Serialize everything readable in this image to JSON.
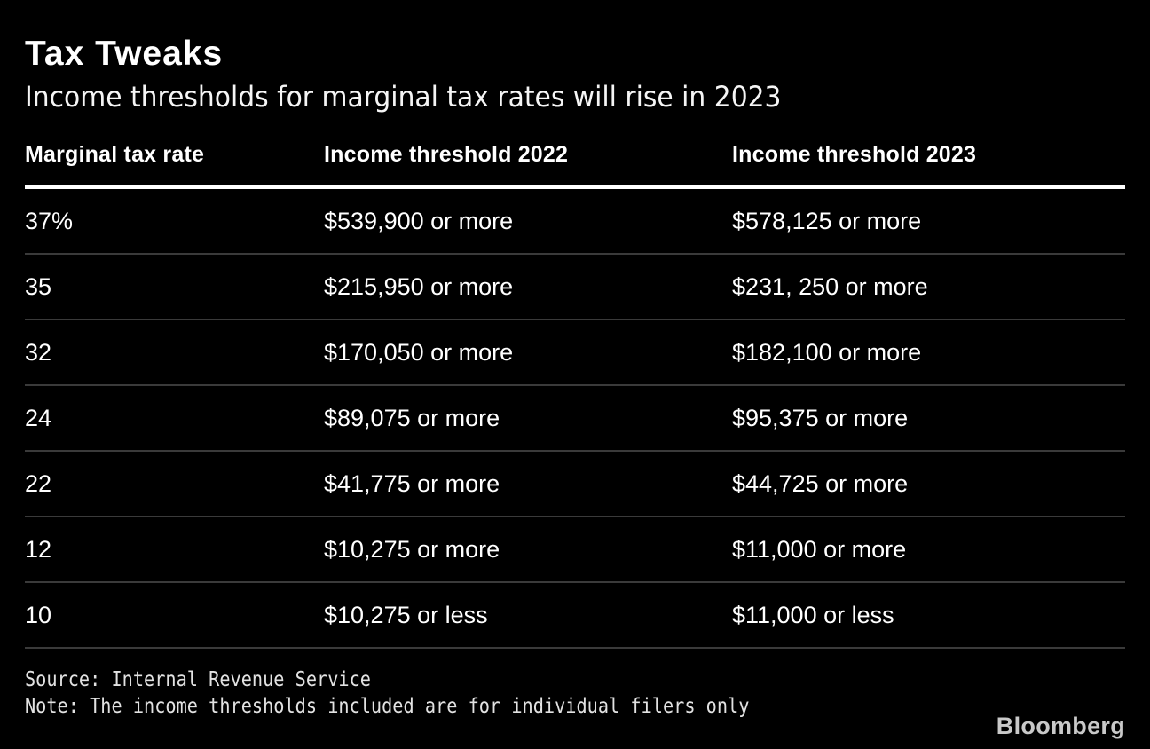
{
  "title": "Tax Tweaks",
  "subtitle": "Income thresholds for marginal tax rates will rise in 2023",
  "table": {
    "columns": [
      "Marginal tax rate",
      "Income threshold 2022",
      "Income threshold 2023"
    ],
    "rows": [
      {
        "rate": "37%",
        "threshold_2022": "$539,900 or more",
        "threshold_2023": "$578,125 or more"
      },
      {
        "rate": "35",
        "threshold_2022": "$215,950 or more",
        "threshold_2023": "$231, 250 or more"
      },
      {
        "rate": "32",
        "threshold_2022": "$170,050 or more",
        "threshold_2023": "$182,100 or more"
      },
      {
        "rate": "24",
        "threshold_2022": "$89,075 or more",
        "threshold_2023": "$95,375 or more"
      },
      {
        "rate": "22",
        "threshold_2022": "$41,775 or more",
        "threshold_2023": "$44,725 or more"
      },
      {
        "rate": "12",
        "threshold_2022": "$10,275 or more",
        "threshold_2023": "$11,000 or more"
      },
      {
        "rate": "10",
        "threshold_2022": "$10,275 or less",
        "threshold_2023": "$11,000 or less"
      }
    ]
  },
  "footer": {
    "source": "Source: Internal Revenue Service",
    "note": "Note: The income thresholds included are for individual filers only",
    "brand": "Bloomberg"
  },
  "colors": {
    "background": "#000000",
    "text": "#ffffff",
    "header_rule": "#ffffff",
    "row_separator": "#3a3a3a",
    "footer_text": "#e2e2e2",
    "brand_text": "#c9c9c9"
  },
  "chart_data": {
    "type": "table",
    "title": "Tax Tweaks",
    "subtitle": "Income thresholds for marginal tax rates will rise in 2023",
    "columns": [
      "Marginal tax rate",
      "Income threshold 2022",
      "Income threshold 2023"
    ],
    "rows": [
      [
        "37%",
        "$539,900 or more",
        "$578,125 or more"
      ],
      [
        "35",
        "$215,950 or more",
        "$231, 250 or more"
      ],
      [
        "32",
        "$170,050 or more",
        "$182,100 or more"
      ],
      [
        "24",
        "$89,075 or more",
        "$95,375 or more"
      ],
      [
        "22",
        "$41,775 or more",
        "$44,725 or more"
      ],
      [
        "12",
        "$10,275 or more",
        "$11,000 or more"
      ],
      [
        "10",
        "$10,275 or less",
        "$11,000 or less"
      ]
    ],
    "source": "Internal Revenue Service",
    "note": "The income thresholds included are for individual filers only"
  }
}
